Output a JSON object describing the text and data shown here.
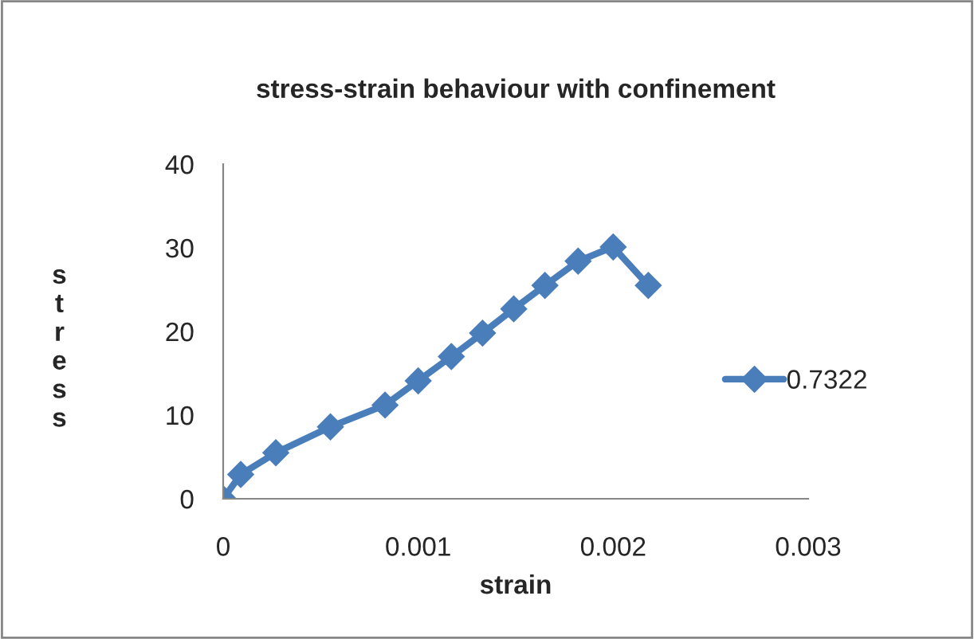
{
  "chart_data": {
    "type": "line",
    "title": "stress-strain behaviour with confinement",
    "xlabel": "strain",
    "ylabel": "s\nt\nr\ne\ns\ns",
    "x": [
      0,
      9e-05,
      0.00027,
      0.00055,
      0.00083,
      0.001,
      0.00117,
      0.00133,
      0.00149,
      0.00165,
      0.00182,
      0.002,
      0.00218
    ],
    "series": [
      {
        "name": "0.7322",
        "color": "#4a7ebb",
        "values": [
          0,
          2.9,
          5.5,
          8.6,
          11.2,
          14.1,
          17,
          19.8,
          22.7,
          25.5,
          28.4,
          30.1,
          25.5
        ]
      }
    ],
    "xlim": [
      0,
      0.003
    ],
    "xticks": [
      0,
      0.001,
      0.002,
      0.003
    ],
    "ylim": [
      0,
      40
    ],
    "yticks": [
      0,
      10,
      20,
      30,
      40
    ],
    "marker": "diamond",
    "line_style": "solid",
    "legend": "right",
    "grid": false
  }
}
